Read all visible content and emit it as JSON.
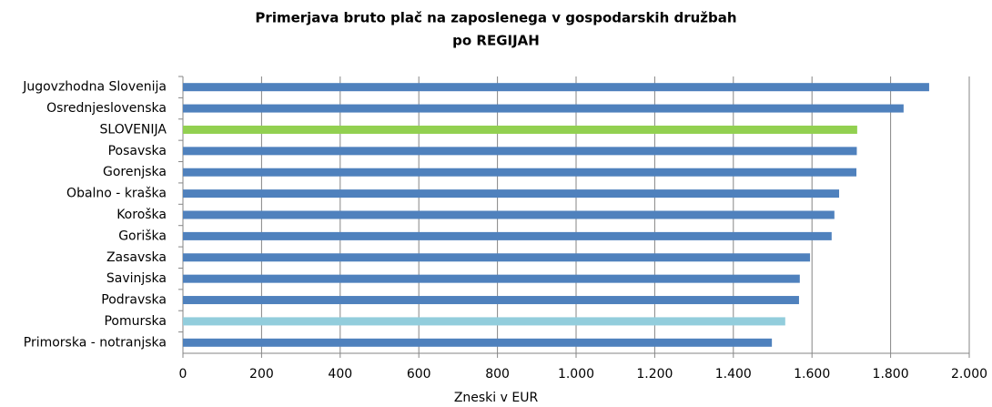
{
  "chart_data": {
    "type": "hbar",
    "title": [
      "Primerjava bruto plač na zaposlenega v gospodarskih družbah",
      "po REGIJAH"
    ],
    "x_label": "Zneski v EUR",
    "categories": [
      "Jugovzhodna Slovenija",
      "Osrednjeslovenska",
      "SLOVENIJA",
      "Posavska",
      "Gorenjska",
      "Obalno - kraška",
      "Koroška",
      "Goriška",
      "Zasavska",
      "Savinjska",
      "Podravska",
      "Pomurska",
      "Primorska - notranjska"
    ],
    "values": [
      1898,
      1833,
      1715,
      1714,
      1713,
      1669,
      1657,
      1650,
      1595,
      1569,
      1567,
      1532,
      1498
    ],
    "colors": [
      "#4f81bd",
      "#4f81bd",
      "#92d050",
      "#4f81bd",
      "#4f81bd",
      "#4f81bd",
      "#4f81bd",
      "#4f81bd",
      "#4f81bd",
      "#4f81bd",
      "#4f81bd",
      "#92cddc",
      "#4f81bd"
    ],
    "xlim": [
      0,
      2000
    ],
    "xticks": [
      0,
      200,
      400,
      600,
      800,
      {
        "value": 1000,
        "label": "1.000"
      },
      {
        "value": 1200,
        "label": "1.200"
      },
      {
        "value": 1400,
        "label": "1.400"
      },
      {
        "value": 1600,
        "label": "1.600"
      },
      {
        "value": 1800,
        "label": "1.800"
      },
      {
        "value": 2000,
        "label": "2.000"
      }
    ],
    "grid": true
  }
}
